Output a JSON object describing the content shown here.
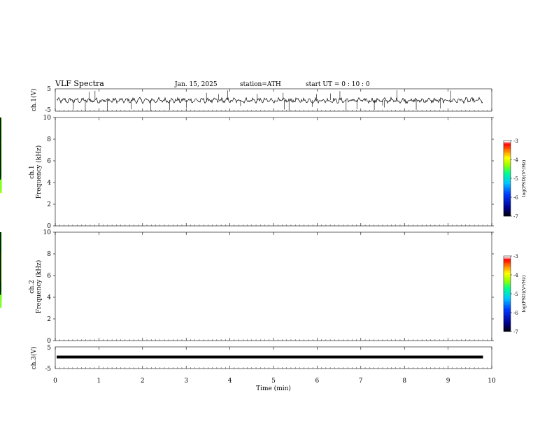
{
  "header": {
    "title": "VLF  Spectra",
    "date": "Jan. 15, 2025",
    "station": "station=ATH",
    "start_ut": "start  UT  =    0  : 10 : 0"
  },
  "chart_data": [
    {
      "type": "line",
      "name": "ch1-waveform",
      "ylabel": "ch.1(V)",
      "ylim": [
        -5,
        5
      ],
      "yticks": [
        "5",
        "-5"
      ],
      "xlim": [
        0,
        10
      ],
      "x_end": 9.8
    },
    {
      "type": "heatmap",
      "name": "ch1-spectrogram",
      "ylabel": "ch.1\nFrequency (kHz)",
      "ylabel_line1": "ch.1",
      "ylabel_line2": "Frequency  (kHz)",
      "ylim": [
        0,
        10
      ],
      "yticks": [
        "0",
        "2",
        "4",
        "6",
        "8",
        "10"
      ],
      "xlim": [
        0,
        10
      ],
      "colorbar": {
        "label": "log(PSD)(V²/Hz)",
        "range": [
          -7,
          -3
        ],
        "ticks": [
          "-3",
          "-4",
          "-5",
          "-6",
          "-7"
        ]
      }
    },
    {
      "type": "heatmap",
      "name": "ch2-spectrogram",
      "ylabel_line1": "ch.2",
      "ylabel_line2": "Frequency  (kHz)",
      "ylim": [
        0,
        10
      ],
      "yticks": [
        "0",
        "2",
        "4",
        "6",
        "8",
        "10"
      ],
      "xlim": [
        0,
        10
      ],
      "colorbar": {
        "label": "log(PSD)(V²/Hz)",
        "range": [
          -7,
          -3
        ],
        "ticks": [
          "-3",
          "-4",
          "-5",
          "-6",
          "-7"
        ]
      }
    },
    {
      "type": "line",
      "name": "ch3-waveform",
      "ylabel": "ch.3(V)",
      "ylim": [
        -5,
        5
      ],
      "yticks": [
        "5",
        "-5"
      ],
      "xlim": [
        0,
        10
      ],
      "x_end": 9.8,
      "level": 0
    }
  ],
  "xaxis": {
    "label": "Time  (min)",
    "ticks": [
      "0",
      "1",
      "2",
      "3",
      "4",
      "5",
      "6",
      "7",
      "8",
      "9",
      "10"
    ],
    "range": [
      0,
      10
    ]
  },
  "colors": {
    "waveform": "#000000",
    "colormap": [
      "#000000",
      "#00008a",
      "#0030ff",
      "#00c8ff",
      "#00ff90",
      "#a0ff00",
      "#ffff00",
      "#ff8000",
      "#ff0000",
      "#ffffff"
    ]
  }
}
